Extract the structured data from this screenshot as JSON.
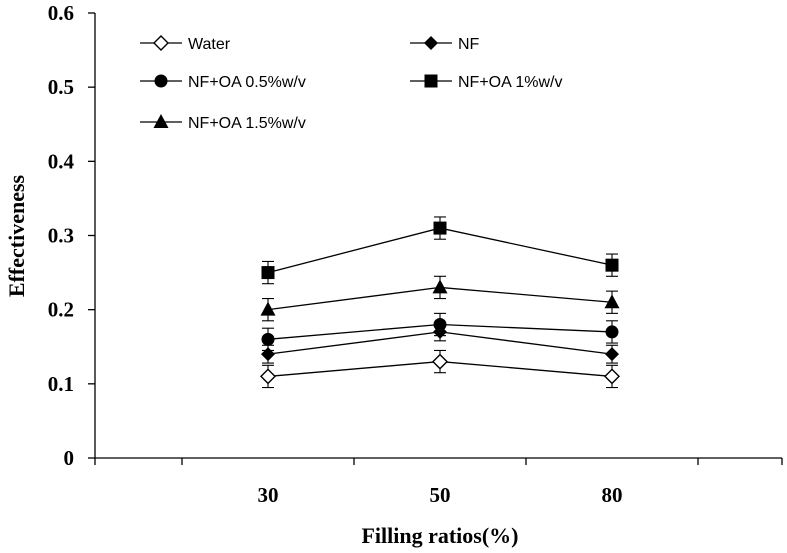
{
  "chart_data": {
    "type": "line",
    "title": "",
    "xlabel": "Filling ratios(%)",
    "ylabel": "Effectiveness",
    "categories": [
      "30",
      "50",
      "80"
    ],
    "ylim": [
      0,
      0.6
    ],
    "yticks": [
      "0",
      "0.1",
      "0.2",
      "0.3",
      "0.4",
      "0.5",
      "0.6"
    ],
    "grid": false,
    "legend_position": "top",
    "series": [
      {
        "name": "Water",
        "marker": "diamond-open",
        "values": [
          0.11,
          0.13,
          0.11
        ],
        "error": [
          0.015,
          0.015,
          0.015
        ]
      },
      {
        "name": "NF",
        "marker": "diamond-filled",
        "values": [
          0.14,
          0.17,
          0.14
        ],
        "error": [
          0.012,
          0.012,
          0.012
        ]
      },
      {
        "name": "NF+OA 0.5%w/v",
        "marker": "circle",
        "values": [
          0.16,
          0.18,
          0.17
        ],
        "error": [
          0.015,
          0.015,
          0.015
        ]
      },
      {
        "name": "NF+OA 1%w/v",
        "marker": "square",
        "values": [
          0.25,
          0.31,
          0.26
        ],
        "error": [
          0.015,
          0.015,
          0.015
        ]
      },
      {
        "name": "NF+OA 1.5%w/v",
        "marker": "triangle",
        "values": [
          0.2,
          0.23,
          0.21
        ],
        "error": [
          0.015,
          0.015,
          0.015
        ]
      }
    ]
  }
}
